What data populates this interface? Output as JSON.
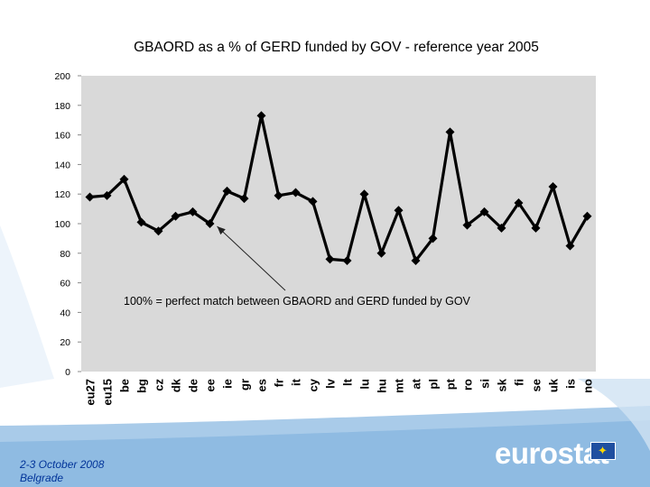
{
  "chart_data": {
    "type": "line",
    "title": "GBAORD as a % of GERD funded by GOV - reference year 2005",
    "categories": [
      "eu27",
      "eu15",
      "be",
      "bg",
      "cz",
      "dk",
      "de",
      "ee",
      "ie",
      "gr",
      "es",
      "fr",
      "it",
      "cy",
      "lv",
      "lt",
      "lu",
      "hu",
      "mt",
      "at",
      "pl",
      "pt",
      "ro",
      "si",
      "sk",
      "fi",
      "se",
      "uk",
      "is",
      "no"
    ],
    "values": [
      118,
      119,
      130,
      101,
      95,
      105,
      108,
      100,
      122,
      117,
      173,
      119,
      121,
      115,
      76,
      75,
      120,
      80,
      109,
      75,
      90,
      162,
      99,
      108,
      97,
      114,
      97,
      125,
      85,
      105
    ],
    "ylim": [
      0,
      200
    ],
    "yticks": [
      0,
      20,
      40,
      60,
      80,
      100,
      120,
      140,
      160,
      180,
      200
    ],
    "grid": false,
    "annotation": "100% = perfect match between GBAORD and GERD funded by GOV",
    "colors": {
      "plot_bg": "#d9d9d9",
      "line": "#000000",
      "band": "#a6c8e8"
    }
  },
  "footer": {
    "line1": "2-3 October 2008",
    "line2": "Belgrade"
  },
  "logo": {
    "text": "eurostat",
    "flag_icon": "eu-flag-icon"
  }
}
